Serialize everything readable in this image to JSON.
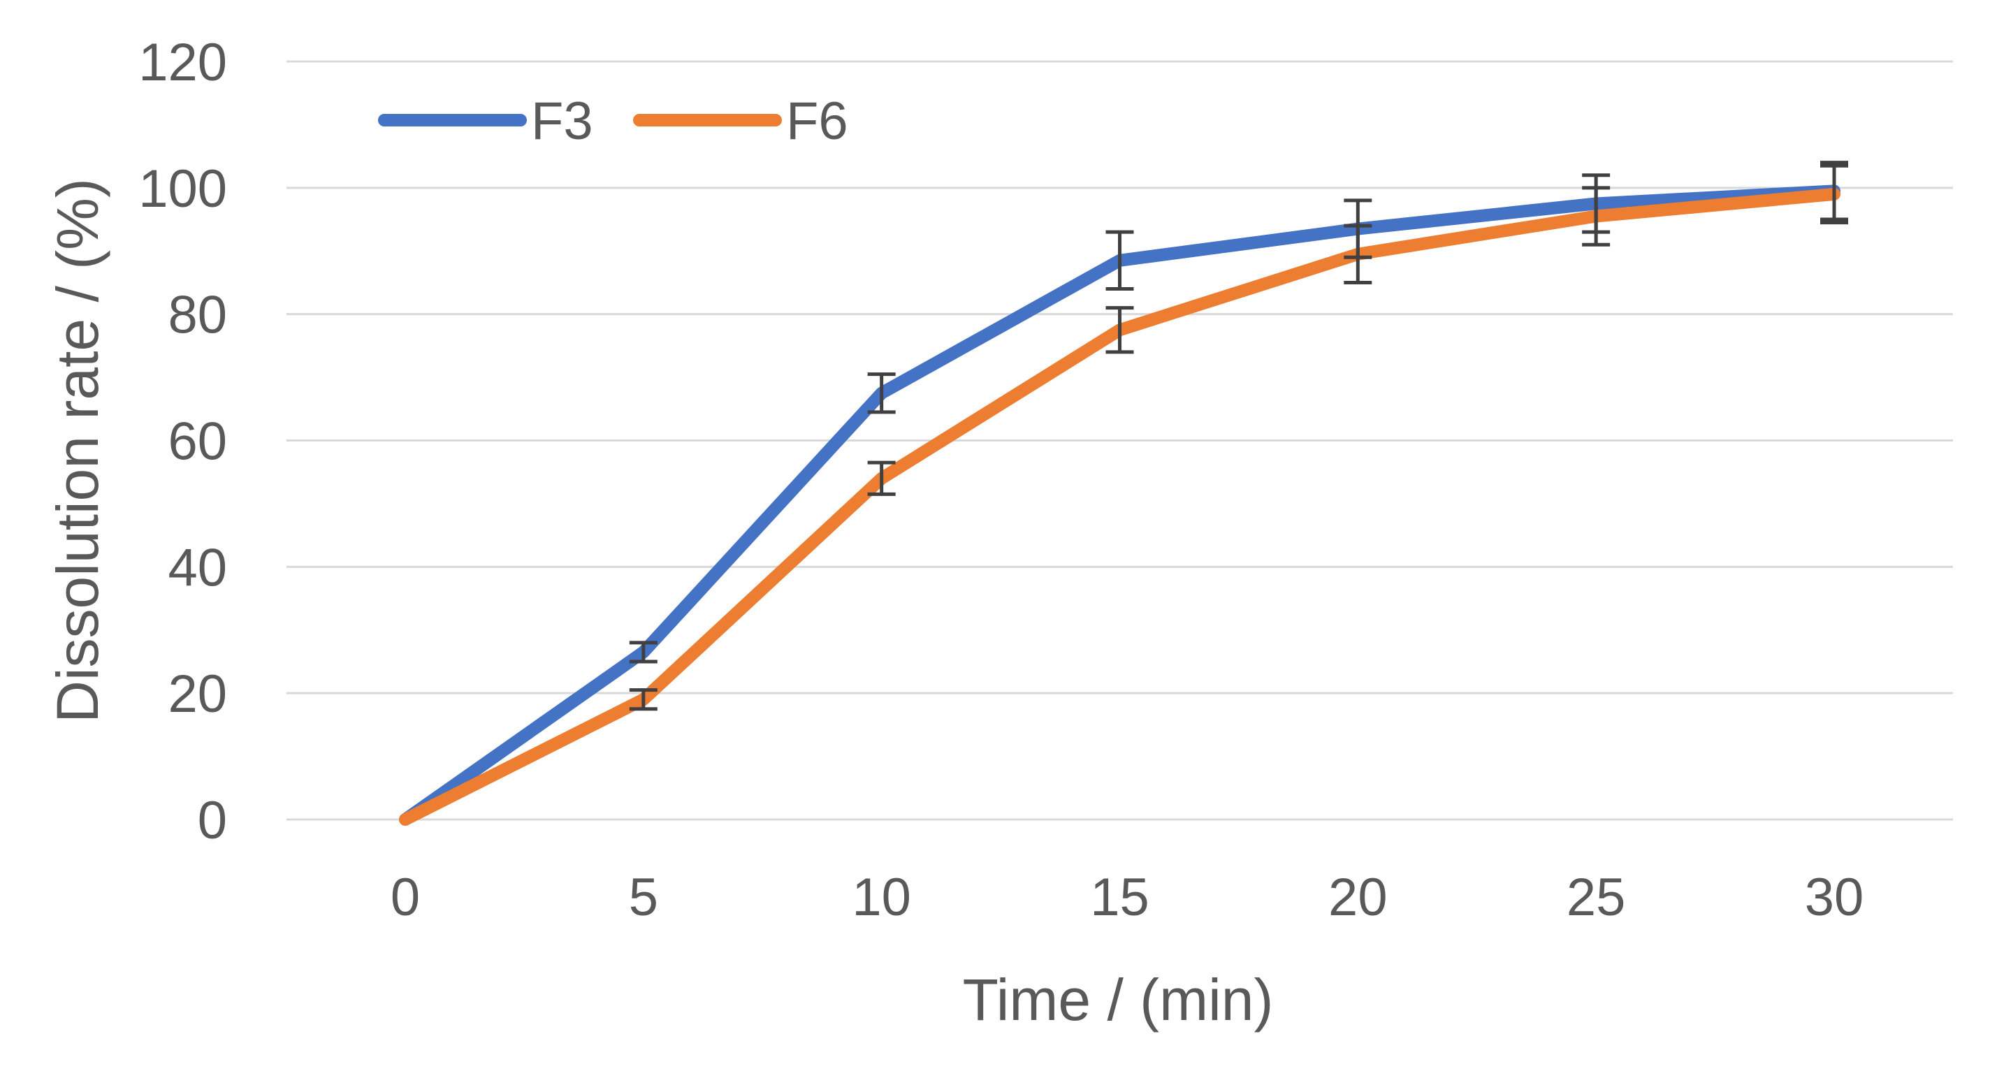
{
  "chart_data": {
    "type": "line",
    "title": "",
    "xlabel": "Time / (min)",
    "ylabel": "Dissolution rate / (%)",
    "x": [
      0,
      5,
      10,
      15,
      20,
      25,
      30
    ],
    "x_tick_labels": [
      "0",
      "5",
      "10",
      "15",
      "20",
      "25",
      "30"
    ],
    "y_tick_labels": [
      "0",
      "20",
      "40",
      "60",
      "80",
      "100",
      "120"
    ],
    "ylim": [
      0,
      120
    ],
    "y_ticks": [
      0,
      20,
      40,
      60,
      80,
      100,
      120
    ],
    "grid": true,
    "legend_position": "top-left",
    "series": [
      {
        "name": "F3",
        "color": "#4472C4",
        "values": [
          0,
          26.5,
          67.5,
          88.5,
          93.5,
          97.5,
          99.5
        ],
        "error": [
          0,
          1.5,
          3,
          4.5,
          4.5,
          4.5,
          4.5
        ]
      },
      {
        "name": "F6",
        "color": "#ED7D31",
        "values": [
          0,
          19,
          54,
          77.5,
          89.5,
          95.5,
          99
        ],
        "error": [
          0,
          1.5,
          2.5,
          3.5,
          4.5,
          4.5,
          4.5
        ]
      }
    ],
    "gridline_color": "#D9D9D9",
    "error_bar_color": "#404040"
  }
}
